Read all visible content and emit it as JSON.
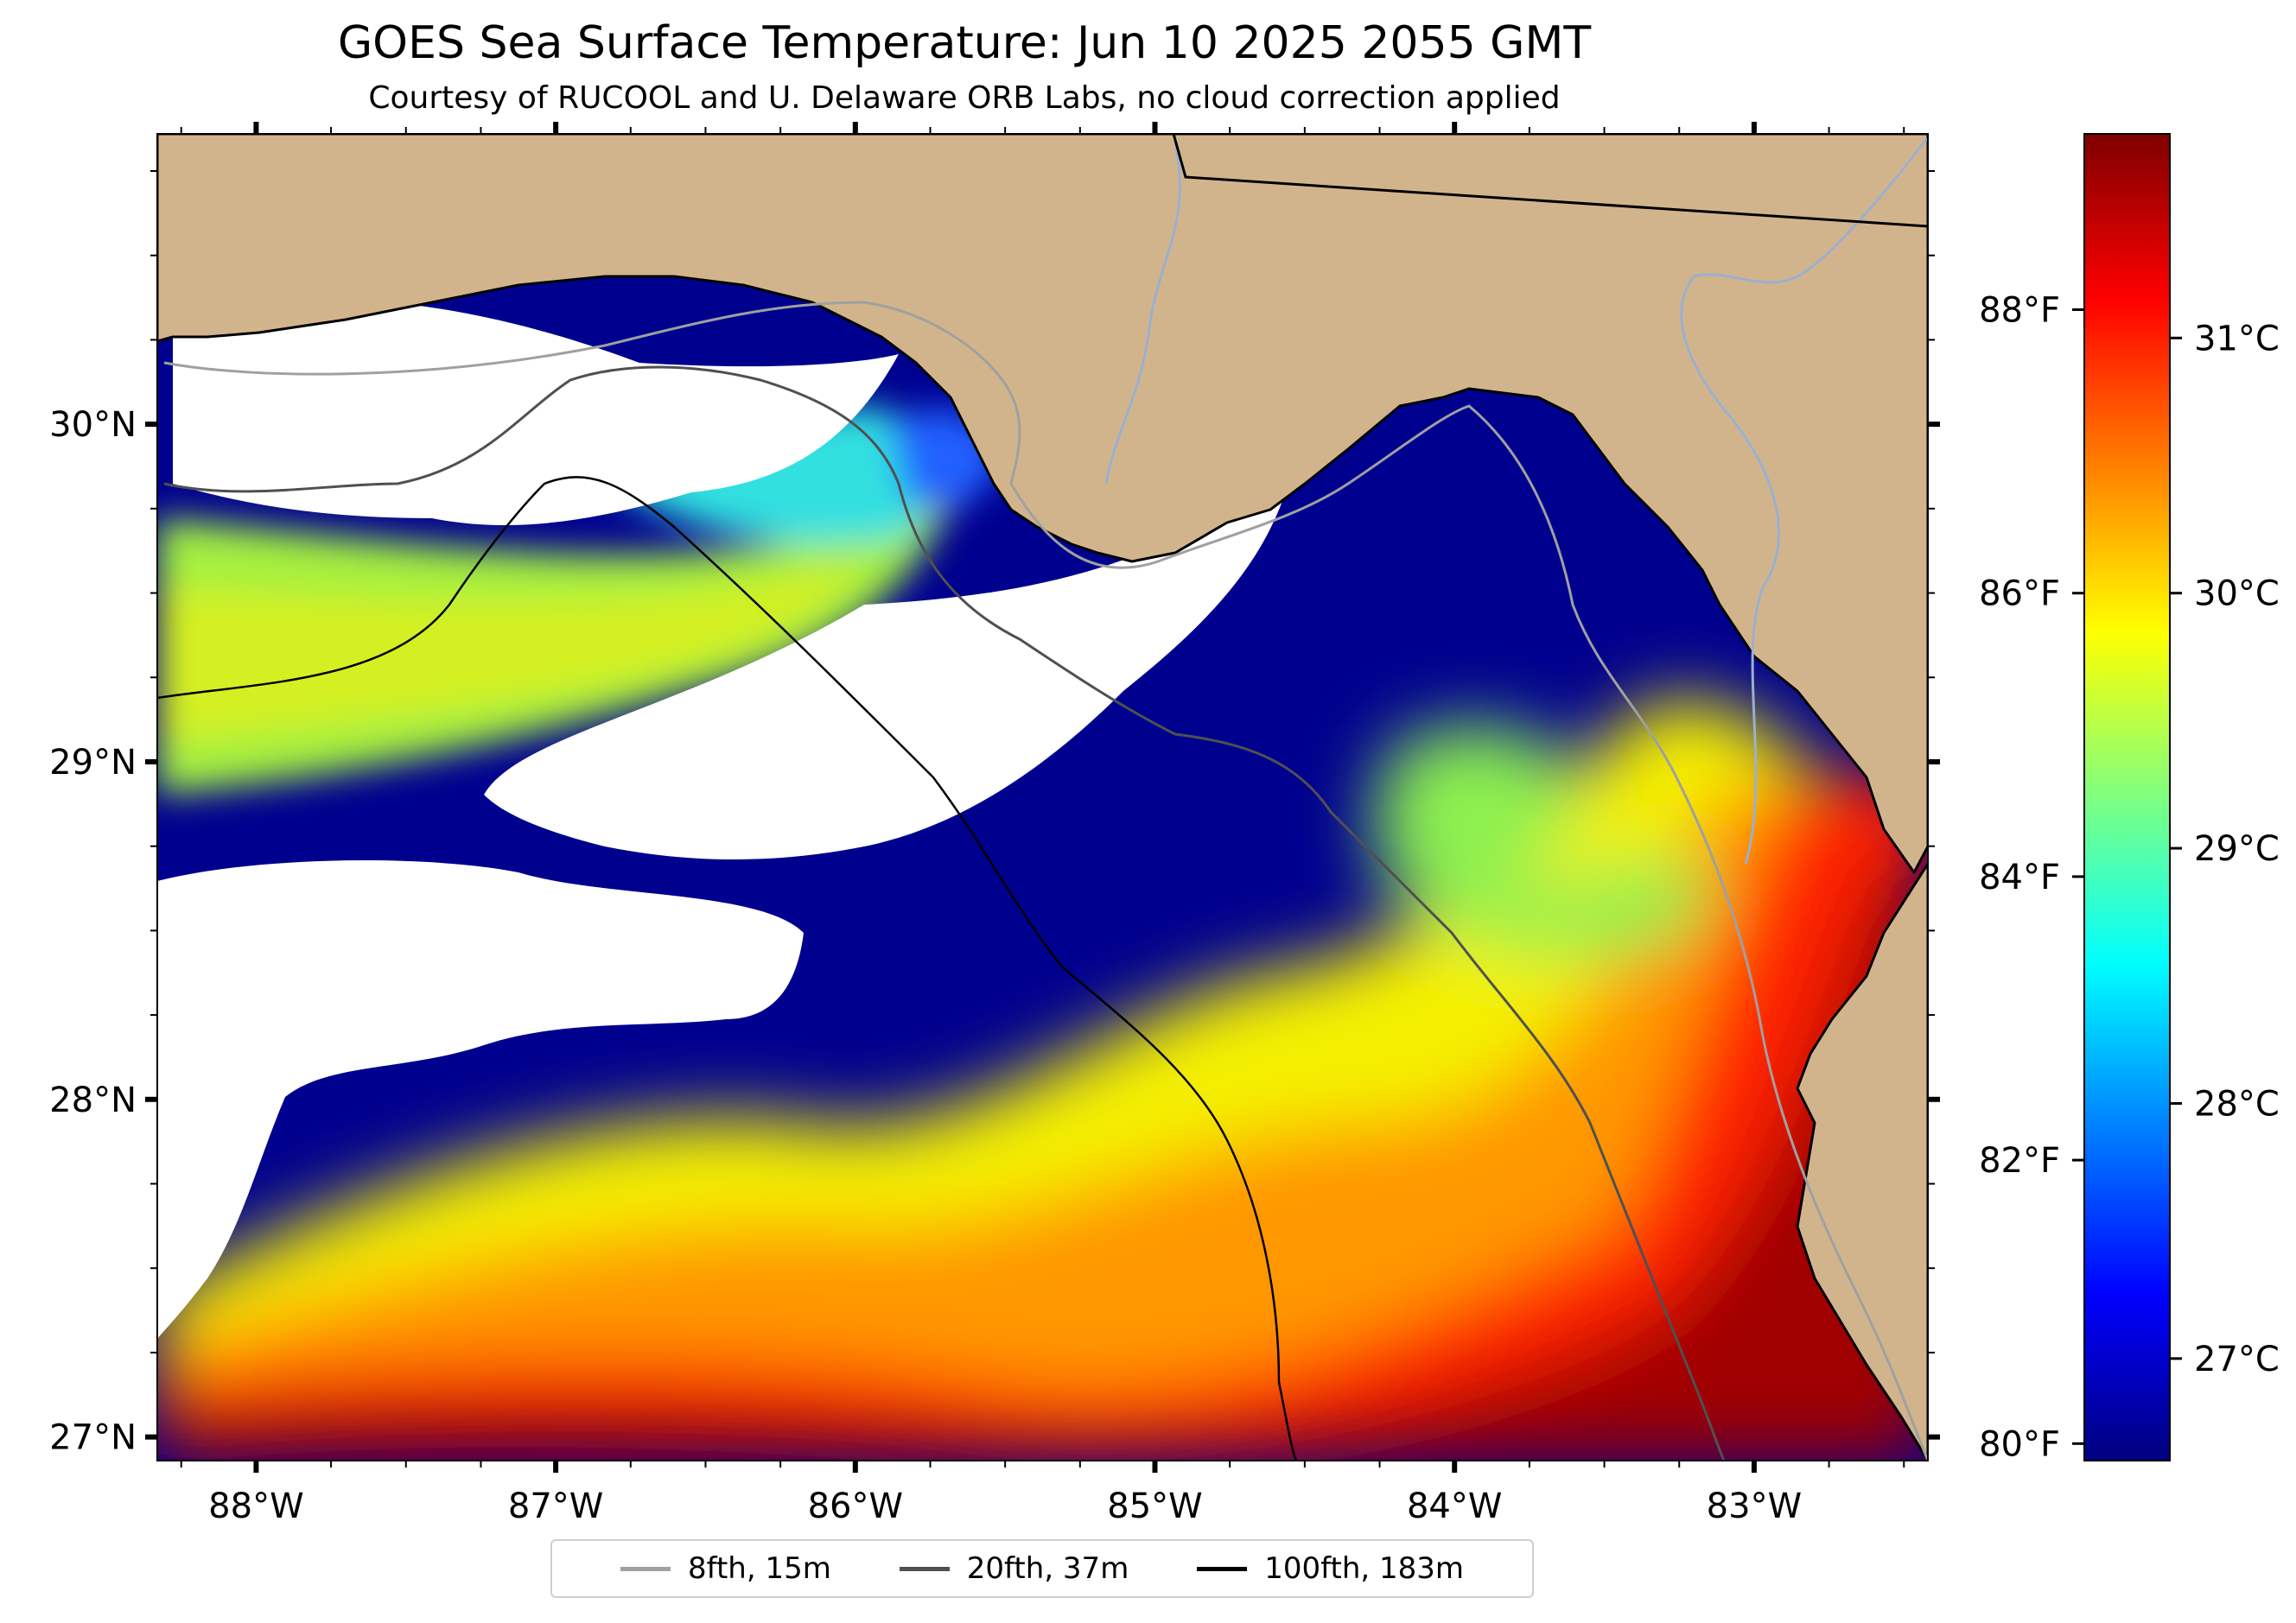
{
  "title": "GOES Sea Surface Temperature: Jun 10 2025 2055 GMT",
  "subtitle": "Courtesy of RUCOOL and U. Delaware ORB Labs, no cloud correction applied",
  "map": {
    "lon_range": [
      -88.33,
      -82.42
    ],
    "lat_range": [
      26.93,
      30.86
    ],
    "x_ticks": [
      {
        "value": -88,
        "label": "88°W"
      },
      {
        "value": -87,
        "label": "87°W"
      },
      {
        "value": -86,
        "label": "86°W"
      },
      {
        "value": -85,
        "label": "85°W"
      },
      {
        "value": -84,
        "label": "84°W"
      },
      {
        "value": -83,
        "label": "83°W"
      }
    ],
    "y_ticks": [
      {
        "value": 30,
        "label": "30°N"
      },
      {
        "value": 29,
        "label": "29°N"
      },
      {
        "value": 28,
        "label": "28°N"
      },
      {
        "value": 27,
        "label": "27°N"
      }
    ],
    "colors": {
      "land": "#d2b48c",
      "cloud": "#ffffff",
      "cold_water": "#00008f",
      "coastline": "#000000",
      "rivers": "#9ab0d0"
    }
  },
  "colorbar": {
    "colormap": "jet",
    "range_c": [
      26.6,
      31.8
    ],
    "fahrenheit_ticks": [
      {
        "value": 88,
        "label": "88°F"
      },
      {
        "value": 86,
        "label": "86°F"
      },
      {
        "value": 84,
        "label": "84°F"
      },
      {
        "value": 82,
        "label": "82°F"
      },
      {
        "value": 80,
        "label": "80°F"
      }
    ],
    "celsius_ticks": [
      {
        "value": 31,
        "label": "31°C"
      },
      {
        "value": 30,
        "label": "30°C"
      },
      {
        "value": 29,
        "label": "29°C"
      },
      {
        "value": 28,
        "label": "28°C"
      },
      {
        "value": 27,
        "label": "27°C"
      }
    ]
  },
  "legend": {
    "placement": "bottom-center",
    "items": [
      {
        "label": "8fth, 15m",
        "color": "#a0a0a0"
      },
      {
        "label": "20fth, 37m",
        "color": "#505050"
      },
      {
        "label": "100fth, 183m",
        "color": "#000000"
      }
    ]
  }
}
